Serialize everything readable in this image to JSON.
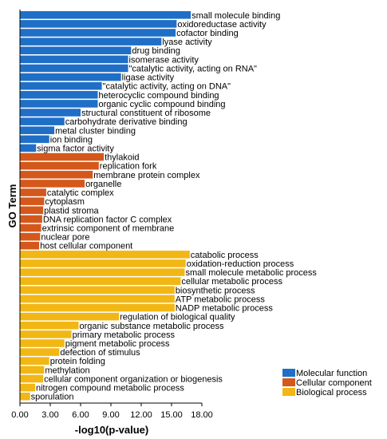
{
  "chart_data": {
    "type": "bar",
    "orientation": "horizontal",
    "xlabel": "-log10(p-value)",
    "ylabel": "GO Term",
    "xlim": [
      0,
      18
    ],
    "xticks": [
      "0.00",
      "3.00",
      "6.00",
      "9.00",
      "12.00",
      "15.00",
      "18.00"
    ],
    "grid": false,
    "legend_position": "bottom-right",
    "series": [
      {
        "name": "Molecular function",
        "color": "#1f6fc7",
        "categories": [
          "small molecule binding",
          "oxidoreductase activity",
          "cofactor binding",
          "lyase activity",
          "drug binding",
          "isomerase activity",
          "\"catalytic activity, acting on RNA\"",
          "ligase activity",
          "\"catalytic activity, acting on DNA\"",
          "heterocyclic compound binding",
          "organic cyclic compound binding",
          "structural constituent of ribosome",
          "carbohydrate derivative binding",
          "metal cluster binding",
          "ion binding",
          "sigma factor activity"
        ],
        "values": [
          16.9,
          15.5,
          15.4,
          14.0,
          11.0,
          10.7,
          10.7,
          10.0,
          8.1,
          7.7,
          7.7,
          6.0,
          4.4,
          3.4,
          2.9,
          1.6
        ]
      },
      {
        "name": "Cellular component",
        "color": "#d4581b",
        "categories": [
          "thylakoid",
          "replication fork",
          "membrane protein complex",
          "organelle",
          "catalytic complex",
          "cytoplasm",
          "plastid stroma",
          "DNA replication factor C complex",
          "extrinsic component of membrane",
          "nuclear pore",
          "host cellular component"
        ],
        "values": [
          8.3,
          7.8,
          7.2,
          6.4,
          2.6,
          2.4,
          2.3,
          2.2,
          2.1,
          2.0,
          1.9
        ]
      },
      {
        "name": "Biological process",
        "color": "#f2b714",
        "categories": [
          "catabolic process",
          "oxidation-reduction process",
          "small molecule metabolic process",
          "cellular metabolic process",
          "biosynthetic process",
          "ATP metabolic process",
          "NADP metabolic process",
          "regulation of biological quality",
          "organic substance metabolic process",
          "primary metabolic process",
          "pigment metabolic process",
          "defection of stimulus",
          "protein folding",
          "methylation",
          "cellular component organization or biogenesis",
          "nitrogen compound metabolic process",
          "sporulation"
        ],
        "values": [
          16.8,
          16.4,
          16.3,
          15.9,
          15.3,
          15.3,
          15.3,
          9.8,
          5.8,
          5.1,
          4.4,
          3.9,
          2.9,
          2.4,
          2.3,
          1.5,
          1.0
        ]
      }
    ]
  }
}
